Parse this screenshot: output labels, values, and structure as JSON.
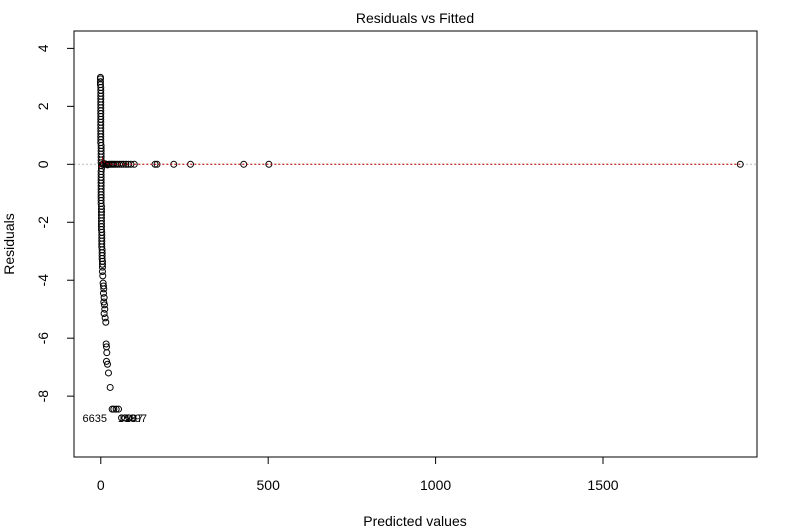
{
  "chart_data": {
    "type": "scatter",
    "title": "Residuals vs Fitted",
    "xlabel": "Predicted values",
    "ylabel": "Residuals",
    "xlim": [
      -80,
      1960
    ],
    "ylim": [
      -10.1,
      4.6
    ],
    "xticks": [
      0,
      500,
      1000,
      1500
    ],
    "xtick_labels": [
      "0",
      "500",
      "1000",
      "1500"
    ],
    "yticks": [
      -8,
      -6,
      -4,
      -2,
      0,
      2,
      4
    ],
    "ytick_labels": [
      "-8",
      "-6",
      "-4",
      "-2",
      "0",
      "2",
      "4"
    ],
    "grid": false,
    "colors": {
      "points": "#000000",
      "reference_line": "#bbbbbb",
      "smoother": "#cc0000"
    },
    "series": [
      {
        "points": [
          [
            -1,
            3.0
          ],
          [
            -1,
            2.95
          ],
          [
            -1,
            2.85
          ],
          [
            -1,
            2.75
          ],
          [
            0,
            2.65
          ],
          [
            0,
            2.55
          ],
          [
            0,
            2.45
          ],
          [
            0,
            2.35
          ],
          [
            0,
            2.25
          ],
          [
            0,
            2.15
          ],
          [
            0,
            2.05
          ],
          [
            0,
            1.95
          ],
          [
            0,
            1.85
          ],
          [
            0,
            1.75
          ],
          [
            0,
            1.65
          ],
          [
            0,
            1.55
          ],
          [
            0,
            1.45
          ],
          [
            0,
            1.35
          ],
          [
            0,
            1.25
          ],
          [
            0,
            1.15
          ],
          [
            0,
            1.05
          ],
          [
            0,
            0.95
          ],
          [
            0,
            0.85
          ],
          [
            0,
            0.75
          ],
          [
            1,
            0.65
          ],
          [
            1,
            0.55
          ],
          [
            1,
            0.45
          ],
          [
            1,
            0.35
          ],
          [
            1,
            0.25
          ],
          [
            1,
            0.15
          ],
          [
            1,
            0.05
          ],
          [
            2,
            -0.05
          ],
          [
            2,
            -0.15
          ],
          [
            1,
            -0.25
          ],
          [
            1,
            -0.35
          ],
          [
            1,
            -0.45
          ],
          [
            1,
            -0.55
          ],
          [
            1,
            -0.65
          ],
          [
            1,
            -0.75
          ],
          [
            1,
            -0.85
          ],
          [
            1,
            -0.95
          ],
          [
            1,
            -1.05
          ],
          [
            1,
            -1.15
          ],
          [
            1,
            -1.25
          ],
          [
            1,
            -1.35
          ],
          [
            2,
            -1.45
          ],
          [
            2,
            -1.55
          ],
          [
            2,
            -1.65
          ],
          [
            2,
            -1.75
          ],
          [
            2,
            -1.85
          ],
          [
            2,
            -1.95
          ],
          [
            2,
            -2.05
          ],
          [
            2,
            -2.15
          ],
          [
            2,
            -2.25
          ],
          [
            3,
            -2.35
          ],
          [
            3,
            -2.45
          ],
          [
            3,
            -2.55
          ],
          [
            3,
            -2.65
          ],
          [
            3,
            -2.75
          ],
          [
            3,
            -2.85
          ],
          [
            4,
            -2.95
          ],
          [
            4,
            -3.05
          ],
          [
            4,
            -3.15
          ],
          [
            4,
            -3.25
          ],
          [
            5,
            -3.35
          ],
          [
            5,
            -3.45
          ],
          [
            5,
            -3.55
          ],
          [
            5,
            -3.7
          ],
          [
            6,
            -3.85
          ],
          [
            7,
            -4.1
          ],
          [
            8,
            -4.2
          ],
          [
            9,
            -4.3
          ],
          [
            8,
            -4.45
          ],
          [
            10,
            -4.6
          ],
          [
            9,
            -4.75
          ],
          [
            11,
            -4.85
          ],
          [
            12,
            -5.0
          ],
          [
            10,
            -5.15
          ],
          [
            13,
            -5.3
          ],
          [
            15,
            -5.45
          ],
          [
            16,
            -6.2
          ],
          [
            17,
            -6.3
          ],
          [
            18,
            -6.5
          ],
          [
            17,
            -6.8
          ],
          [
            20,
            -6.9
          ],
          [
            23,
            -7.2
          ],
          [
            28,
            -7.7
          ],
          [
            34,
            -8.45
          ],
          [
            39,
            -8.45
          ],
          [
            46,
            -8.45
          ],
          [
            53,
            -8.45
          ],
          [
            62,
            -8.75
          ],
          [
            72,
            -8.75
          ],
          [
            84,
            -8.75
          ],
          [
            95,
            -8.75
          ],
          [
            5,
            0.0
          ],
          [
            8,
            0.0
          ],
          [
            12,
            0.02
          ],
          [
            16,
            0.0
          ],
          [
            20,
            -0.02
          ],
          [
            24,
            0.0
          ],
          [
            28,
            0.0
          ],
          [
            32,
            0.0
          ],
          [
            36,
            0.0
          ],
          [
            40,
            0.0
          ],
          [
            45,
            0.0
          ],
          [
            50,
            0.0
          ],
          [
            56,
            0.0
          ],
          [
            62,
            0.0
          ],
          [
            68,
            0.0
          ],
          [
            75,
            0.0
          ],
          [
            82,
            0.0
          ],
          [
            90,
            0.0
          ],
          [
            100,
            0.0
          ],
          [
            162,
            0.0
          ],
          [
            168,
            0.0
          ],
          [
            218,
            0.0
          ],
          [
            268,
            0.0
          ],
          [
            427,
            0.0
          ],
          [
            502,
            0.0
          ],
          [
            1910,
            0.0
          ]
        ]
      }
    ],
    "smoother": [
      [
        -4,
        -0.1
      ],
      [
        0,
        0.0
      ],
      [
        5,
        0.2
      ],
      [
        12,
        0.05
      ],
      [
        25,
        0.0
      ],
      [
        100,
        0.0
      ],
      [
        1910,
        0.0
      ]
    ],
    "point_labels": [
      {
        "text": "6635",
        "x": 0,
        "y": -8.75
      }
    ],
    "overlapping_labels": [
      "159",
      "187",
      "97"
    ]
  }
}
